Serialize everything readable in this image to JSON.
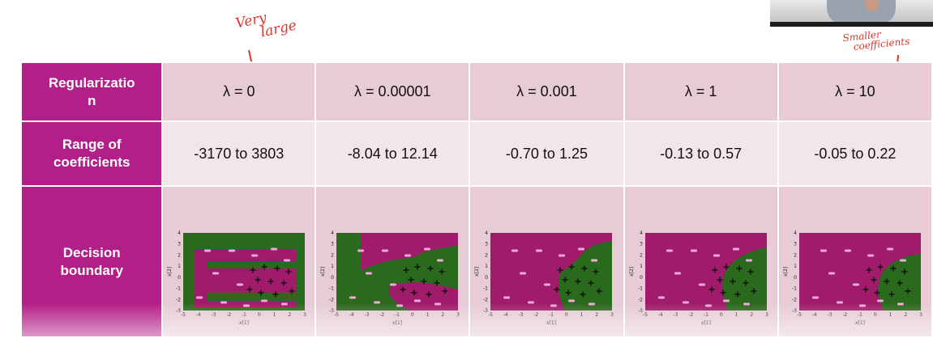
{
  "annotations": {
    "very_large": [
      "Very",
      "large"
    ],
    "smaller_coefficients": [
      "Smaller",
      "coefficients"
    ]
  },
  "table": {
    "row_headers": [
      "Regularizatio\nn",
      "Range of coefficients",
      "Decision boundary"
    ],
    "lambdas": [
      "λ = 0",
      "λ = 0.00001",
      "λ = 0.001",
      "λ = 1",
      "λ = 10"
    ],
    "ranges": [
      "-3170 to 3803",
      "-8.04 to 12.14",
      "-0.70 to 1.25",
      "-0.13 to 0.57",
      "-0.05 to 0.22"
    ]
  },
  "plots": {
    "xlabel": "x[1]",
    "ylabel": "x[2]",
    "panels": [
      {
        "x_ticks": [
          "-5",
          "-4",
          "-3",
          "-2",
          "-1",
          "0",
          "1",
          "2",
          "3"
        ],
        "y_ticks": [
          "4",
          "3",
          "2",
          "1",
          "0",
          "-1",
          "-2",
          "-3"
        ],
        "xlim": [
          -5,
          3
        ]
      },
      {
        "x_ticks": [
          "-5",
          "-4",
          "-3",
          "-2",
          "-1",
          "0",
          "1",
          "2",
          "3"
        ],
        "y_ticks": [
          "4",
          "3",
          "2",
          "1",
          "0",
          "-1",
          "-2",
          "-3"
        ],
        "xlim": [
          -5,
          3
        ]
      },
      {
        "x_ticks": [
          "-5",
          "-4",
          "-3",
          "-2",
          "-1",
          "0",
          "1",
          "2",
          "3"
        ],
        "y_ticks": [
          "4",
          "3",
          "2",
          "1",
          "0",
          "-1",
          "-2",
          "-3"
        ],
        "xlim": [
          -5,
          3
        ]
      },
      {
        "x_ticks": [
          "-5",
          "-4",
          "-3",
          "-2",
          "-1",
          "0",
          "1",
          "2",
          "3"
        ],
        "y_ticks": [
          "4",
          "3",
          "2",
          "1",
          "0",
          "-1",
          "-2",
          "-3"
        ],
        "xlim": [
          -5,
          3
        ]
      },
      {
        "x_ticks": [
          "-5",
          "-4",
          "-3",
          "-2",
          "-1",
          "0",
          "1",
          "2",
          "3"
        ],
        "y_ticks": [
          "4",
          "3",
          "2",
          "1",
          "0",
          "-1",
          "-2",
          "-3"
        ],
        "xlim": [
          -5,
          3
        ]
      }
    ],
    "colors": {
      "negative_region": "#a01c6a",
      "positive_region": "#2a6a1d",
      "negative_marker": "#f2a6de",
      "positive_marker": "#111111"
    }
  }
}
